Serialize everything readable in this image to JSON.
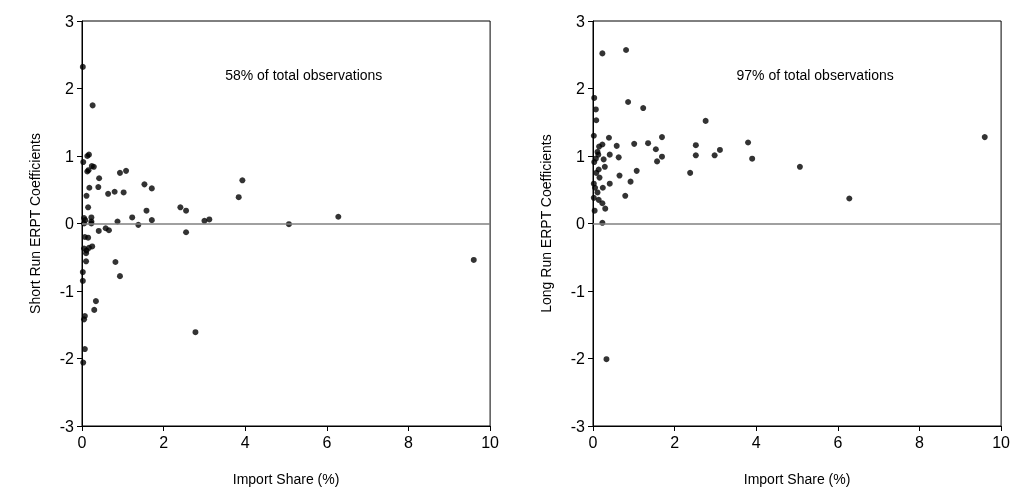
{
  "chart_data": [
    {
      "type": "scatter",
      "xlabel": "Import Share (%)",
      "ylabel": "Short Run ERPT Coefficients",
      "annotations": [
        "58% of total observations"
      ],
      "color": "#000000",
      "marker": "circle",
      "grid": false,
      "xlim": [
        0,
        10
      ],
      "xticks": [
        0,
        2,
        4,
        6,
        8,
        10
      ],
      "ylim": [
        -3,
        3
      ],
      "yticks": [
        -3,
        -2,
        -1,
        0,
        1,
        2,
        3
      ],
      "ref_lines": [
        {
          "axis": "y",
          "value": 0,
          "color": "#808080"
        }
      ],
      "x": [
        0.02,
        0.26,
        0.03,
        0.13,
        0.17,
        0.13,
        0.16,
        0.24,
        0.29,
        0.42,
        0.4,
        0.18,
        0.11,
        0.64,
        0.8,
        0.93,
        1.08,
        1.02,
        0.15,
        0.05,
        0.08,
        0.23,
        0.23,
        0.23,
        0.05,
        0.07,
        0.15,
        0.05,
        0.1,
        0.11,
        0.25,
        0.17,
        0.1,
        0.41,
        0.58,
        0.66,
        0.87,
        0.82,
        0.93,
        1.23,
        1.38,
        1.53,
        1.58,
        1.71,
        1.71,
        2.41,
        2.55,
        2.55,
        2.78,
        3.0,
        3.12,
        3.84,
        3.93,
        0.02,
        0.02,
        0.34,
        0.3,
        0.07,
        0.05,
        0.07,
        0.03,
        5.07,
        6.28,
        9.6
      ],
      "values": [
        2.32,
        1.75,
        0.91,
        1.0,
        1.02,
        0.77,
        0.79,
        0.85,
        0.84,
        0.67,
        0.54,
        0.53,
        0.41,
        0.44,
        0.47,
        0.75,
        0.78,
        0.46,
        0.24,
        0.08,
        0.05,
        0.09,
        0.03,
        0.0,
        0.0,
        -0.2,
        -0.21,
        -0.37,
        -0.44,
        -0.4,
        -0.34,
        -0.36,
        -0.56,
        -0.11,
        -0.07,
        -0.1,
        0.03,
        -0.57,
        -0.78,
        0.09,
        -0.02,
        0.58,
        0.19,
        0.52,
        0.05,
        0.24,
        0.19,
        -0.13,
        -1.61,
        0.04,
        0.06,
        0.39,
        0.64,
        -0.72,
        -0.85,
        -1.15,
        -1.28,
        -1.37,
        -1.42,
        -1.86,
        -2.06,
        -0.01,
        0.1,
        -0.54
      ]
    },
    {
      "type": "scatter",
      "xlabel": "Import Share (%)",
      "ylabel": "Long Run ERPT Coefficients",
      "annotations": [
        "97% of total observations"
      ],
      "color": "#000000",
      "marker": "circle",
      "grid": false,
      "xlim": [
        0,
        10
      ],
      "xticks": [
        0,
        2,
        4,
        6,
        8,
        10
      ],
      "ylim": [
        -3,
        3
      ],
      "yticks": [
        -3,
        -2,
        -1,
        0,
        1,
        2,
        3
      ],
      "ref_lines": [
        {
          "axis": "y",
          "value": 0,
          "color": "#808080"
        }
      ],
      "x": [
        0.23,
        0.81,
        0.03,
        0.07,
        0.08,
        0.86,
        1.23,
        0.02,
        0.39,
        0.23,
        0.15,
        0.58,
        1.01,
        1.35,
        1.54,
        1.69,
        0.11,
        0.13,
        0.07,
        0.03,
        0.26,
        0.41,
        0.63,
        1.57,
        1.69,
        0.29,
        0.14,
        0.08,
        0.16,
        0.65,
        1.07,
        0.92,
        0.41,
        0.24,
        0.02,
        0.05,
        0.11,
        0.02,
        0.14,
        0.23,
        0.3,
        0.04,
        0.79,
        0.23,
        0.33,
        2.38,
        2.52,
        2.52,
        2.76,
        2.98,
        3.11,
        3.8,
        3.9,
        5.07,
        6.28,
        9.6
      ],
      "values": [
        2.52,
        2.57,
        1.86,
        1.69,
        1.53,
        1.8,
        1.71,
        1.3,
        1.27,
        1.17,
        1.14,
        1.15,
        1.18,
        1.19,
        1.1,
        1.28,
        1.06,
        1.02,
        0.96,
        0.91,
        0.95,
        1.02,
        0.98,
        0.92,
        0.99,
        0.84,
        0.8,
        0.75,
        0.68,
        0.71,
        0.78,
        0.62,
        0.59,
        0.53,
        0.59,
        0.53,
        0.46,
        0.38,
        0.35,
        0.3,
        0.22,
        0.19,
        0.41,
        0.01,
        -2.01,
        0.75,
        1.16,
        1.01,
        1.52,
        1.01,
        1.09,
        1.2,
        0.96,
        0.84,
        0.37,
        1.28
      ]
    }
  ]
}
